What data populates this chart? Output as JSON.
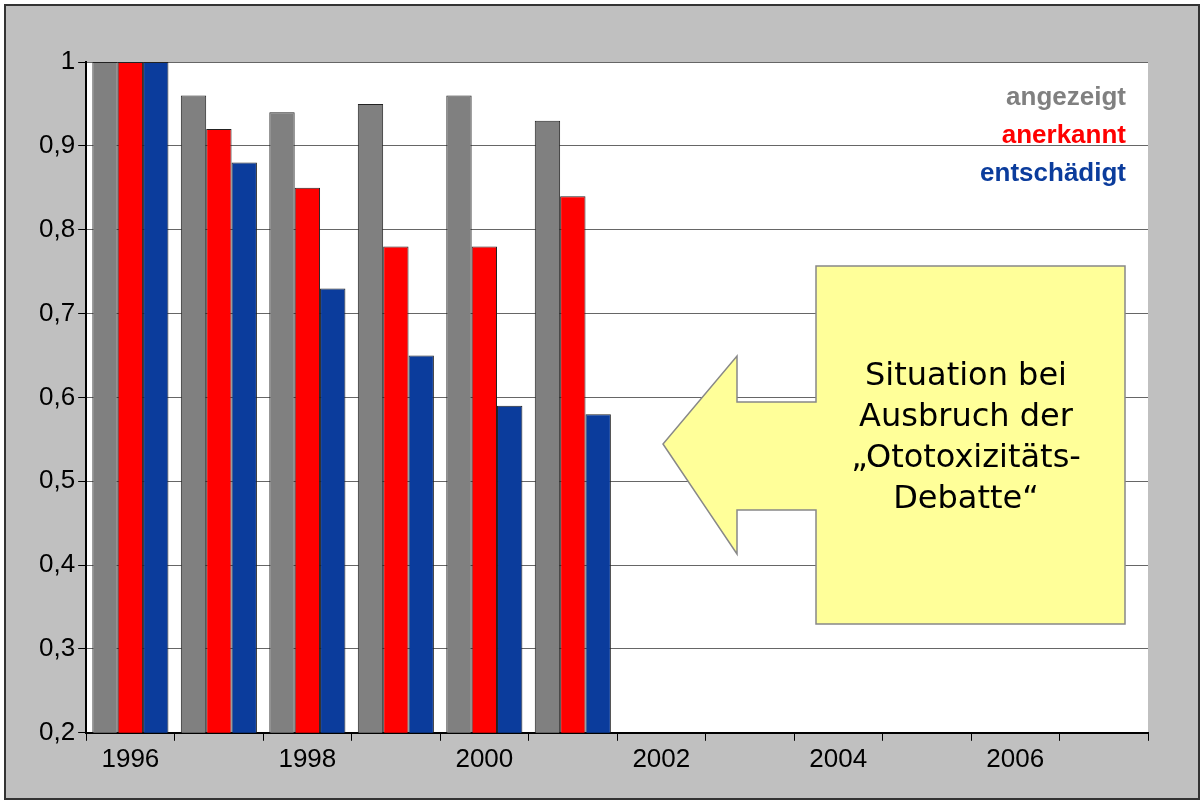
{
  "chart_data": {
    "type": "bar",
    "categories": [
      "1996",
      null,
      "1998",
      null,
      "2000",
      null,
      "2002",
      null,
      "2004",
      null,
      "2006",
      null
    ],
    "series": [
      {
        "name": "angezeigt",
        "color": "#808080",
        "values": [
          1,
          0.96,
          0.94,
          0.95,
          0.96,
          0.93,
          null,
          null,
          null,
          null,
          null,
          null
        ]
      },
      {
        "name": "anerkannt",
        "color": "#ff0000",
        "values": [
          1,
          0.92,
          0.85,
          0.78,
          0.78,
          0.84,
          null,
          null,
          null,
          null,
          null,
          null
        ]
      },
      {
        "name": "entschädigt",
        "color": "#0b3c9c",
        "values": [
          1,
          0.88,
          0.73,
          0.65,
          0.59,
          0.58,
          null,
          null,
          null,
          null,
          null,
          null
        ]
      }
    ],
    "ylim": [
      0.2,
      1
    ],
    "yticks": [
      {
        "value": 0.2,
        "label": "0,2"
      },
      {
        "value": 0.3,
        "label": "0,3"
      },
      {
        "value": 0.4,
        "label": "0,4"
      },
      {
        "value": 0.5,
        "label": "0,5"
      },
      {
        "value": 0.6,
        "label": "0,6"
      },
      {
        "value": 0.7,
        "label": "0,7"
      },
      {
        "value": 0.8,
        "label": "0,8"
      },
      {
        "value": 0.9,
        "label": "0,9"
      },
      {
        "value": 1,
        "label": "1"
      }
    ],
    "grid": "y",
    "legend": "top right",
    "annotations": [
      "Situation bei\nAusbruch der\n„Ototoxizitäts-\nDebatte“"
    ]
  }
}
